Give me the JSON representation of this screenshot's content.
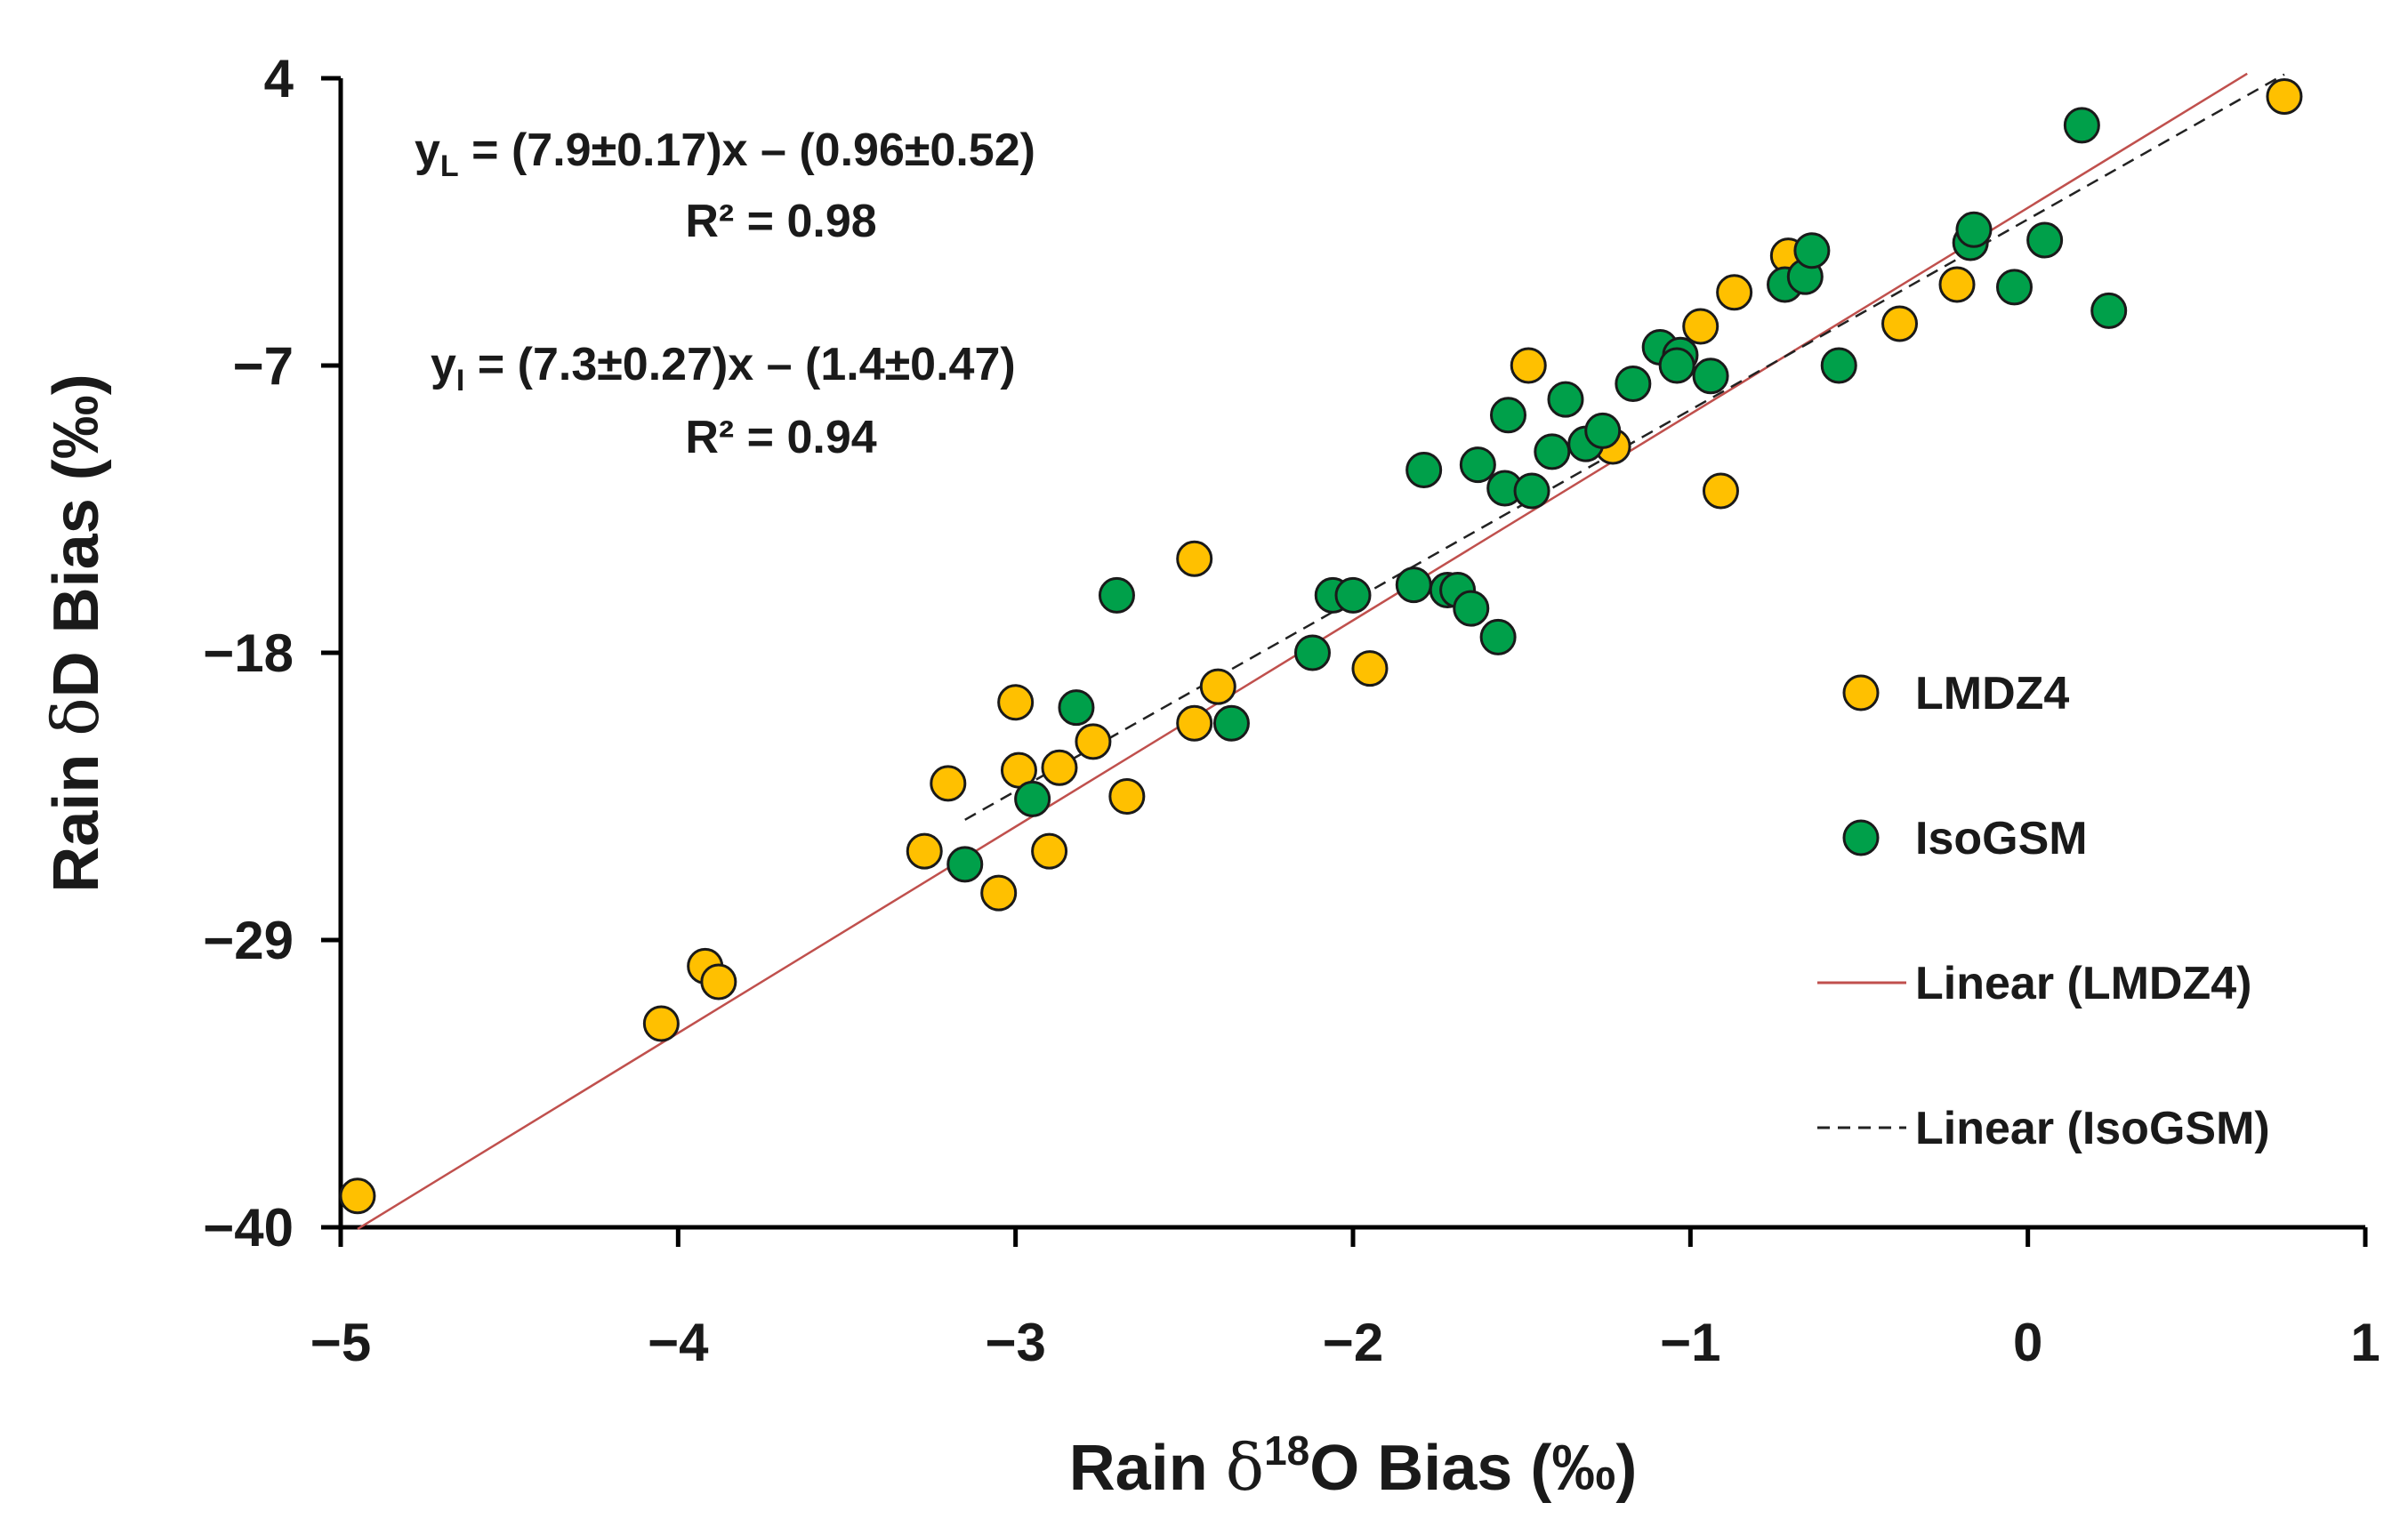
{
  "chart_data": {
    "type": "scatter",
    "xlabel": {
      "prefix": "Rain ",
      "symbol": "δ",
      "sup": "18",
      "suffix": "O Bias (‰)"
    },
    "ylabel": {
      "prefix": "Rain ",
      "symbol": "δ",
      "suffix": "D Bias (‰)"
    },
    "xlim": [
      -5,
      1
    ],
    "ylim": [
      -40,
      4
    ],
    "xticks": [
      -5,
      -4,
      -3,
      -2,
      -1,
      0,
      1
    ],
    "xtick_labels": [
      "−5",
      "−4",
      "−3",
      "−2",
      "−1",
      "0",
      "1"
    ],
    "yticks": [
      4,
      -7,
      -18,
      -29,
      -40
    ],
    "ytick_labels": [
      "4",
      "−7",
      "−18",
      "−29",
      "−40"
    ],
    "colors": {
      "LMDZ4": "#ffc000",
      "IsoGSM": "#00a04a",
      "fit_LMDZ4": "#c0504d",
      "fit_IsoGSM": "#222222",
      "marker_edge": "#1a1a1a",
      "axis": "#000000"
    },
    "annotations": {
      "eq1": {
        "y": "y",
        "sub": "L",
        "rest": " = (7.9±0.17)x – (0.96±0.52)",
        "r2": "R² = 0.98"
      },
      "eq2": {
        "y": "y",
        "sub": "I",
        "rest": " = (7.3±0.27)x – (1.4±0.47)",
        "r2": "R² = 0.94"
      }
    },
    "legend": {
      "placement": "right",
      "entries": [
        {
          "label": "LMDZ4",
          "kind": "marker",
          "series": "LMDZ4"
        },
        {
          "label": "IsoGSM",
          "kind": "marker",
          "series": "IsoGSM"
        },
        {
          "label": "Linear (LMDZ4)",
          "kind": "line",
          "series": "fit_LMDZ4"
        },
        {
          "label": "Linear (IsoGSM)",
          "kind": "dash",
          "series": "fit_IsoGSM"
        }
      ]
    },
    "series": [
      {
        "name": "LMDZ4",
        "points": [
          [
            -4.95,
            -38.8
          ],
          [
            -4.05,
            -32.2
          ],
          [
            -3.92,
            -30.0
          ],
          [
            -3.88,
            -30.6
          ],
          [
            -3.27,
            -25.6
          ],
          [
            -3.2,
            -23.0
          ],
          [
            -3.05,
            -27.2
          ],
          [
            -3.0,
            -19.9
          ],
          [
            -2.99,
            -22.5
          ],
          [
            -2.9,
            -25.6
          ],
          [
            -2.87,
            -22.4
          ],
          [
            -2.77,
            -21.4
          ],
          [
            -2.67,
            -23.5
          ],
          [
            -2.47,
            -20.7
          ],
          [
            -2.4,
            -19.3
          ],
          [
            -2.47,
            -14.4
          ],
          [
            -1.95,
            -18.6
          ],
          [
            -1.48,
            -7.0
          ],
          [
            -1.23,
            -10.1
          ],
          [
            -0.97,
            -5.5
          ],
          [
            -0.91,
            -11.8
          ],
          [
            -0.87,
            -4.2
          ],
          [
            -0.71,
            -2.8
          ],
          [
            -0.38,
            -5.4
          ],
          [
            -0.21,
            -3.9
          ],
          [
            0.76,
            3.3
          ]
        ]
      },
      {
        "name": "IsoGSM",
        "points": [
          [
            -3.15,
            -26.1
          ],
          [
            -2.95,
            -23.6
          ],
          [
            -2.82,
            -20.1
          ],
          [
            -2.7,
            -15.8
          ],
          [
            -2.36,
            -20.7
          ],
          [
            -2.12,
            -18.0
          ],
          [
            -2.06,
            -15.8
          ],
          [
            -2.0,
            -15.8
          ],
          [
            -1.82,
            -15.4
          ],
          [
            -1.79,
            -11.0
          ],
          [
            -1.72,
            -15.6
          ],
          [
            -1.69,
            -15.6
          ],
          [
            -1.65,
            -16.3
          ],
          [
            -1.63,
            -10.8
          ],
          [
            -1.57,
            -17.4
          ],
          [
            -1.55,
            -11.7
          ],
          [
            -1.54,
            -8.9
          ],
          [
            -1.47,
            -11.8
          ],
          [
            -1.41,
            -10.3
          ],
          [
            -1.37,
            -8.3
          ],
          [
            -1.31,
            -10.0
          ],
          [
            -1.26,
            -9.5
          ],
          [
            -1.17,
            -7.7
          ],
          [
            -1.09,
            -6.3
          ],
          [
            -1.03,
            -6.6
          ],
          [
            -1.04,
            -7.0
          ],
          [
            -0.94,
            -7.4
          ],
          [
            -0.72,
            -3.9
          ],
          [
            -0.66,
            -3.6
          ],
          [
            -0.64,
            -2.6
          ],
          [
            -0.56,
            -7.0
          ],
          [
            -0.17,
            -2.3
          ],
          [
            -0.16,
            -1.8
          ],
          [
            -0.04,
            -4.0
          ],
          [
            0.05,
            -2.2
          ],
          [
            0.16,
            2.2
          ],
          [
            0.24,
            -4.9
          ]
        ]
      },
      {
        "name": "fit_LMDZ4",
        "type": "line",
        "slope": 7.9,
        "intercept": -0.96,
        "x_range": [
          -4.95,
          0.65
        ]
      },
      {
        "name": "fit_IsoGSM",
        "type": "line",
        "slope": 7.3,
        "intercept": -1.4,
        "x_range": [
          -3.15,
          0.76
        ]
      }
    ]
  }
}
